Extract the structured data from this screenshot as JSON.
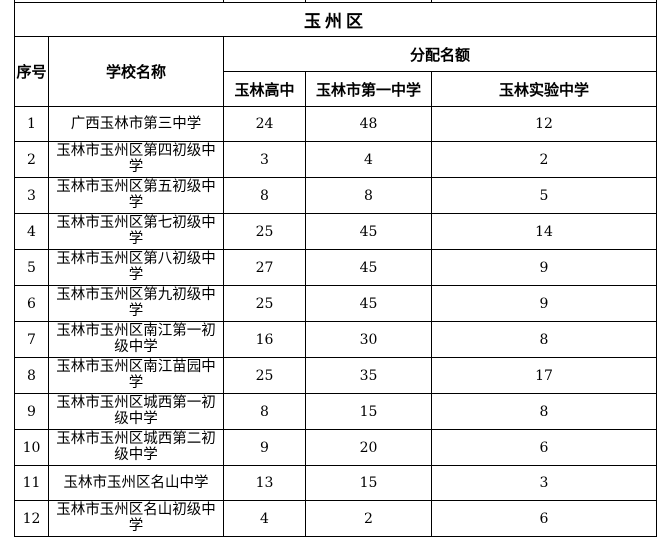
{
  "title": "玉州区",
  "headers": {
    "index": "序号",
    "school": "学校名称",
    "quota": "分配名额",
    "cols": [
      "玉林高中",
      "玉林市第一中学",
      "玉林实验中学"
    ]
  },
  "rows": [
    {
      "no": "1",
      "name": "广西玉林市第三中学",
      "v": [
        "24",
        "48",
        "12"
      ]
    },
    {
      "no": "2",
      "name": "玉林市玉州区第四初级中学",
      "v": [
        "3",
        "4",
        "2"
      ]
    },
    {
      "no": "3",
      "name": "玉林市玉州区第五初级中学",
      "v": [
        "8",
        "8",
        "5"
      ]
    },
    {
      "no": "4",
      "name": "玉林市玉州区第七初级中学",
      "v": [
        "25",
        "45",
        "14"
      ]
    },
    {
      "no": "5",
      "name": "玉林市玉州区第八初级中学",
      "v": [
        "27",
        "45",
        "9"
      ]
    },
    {
      "no": "6",
      "name": "玉林市玉州区第九初级中学",
      "v": [
        "25",
        "45",
        "9"
      ]
    },
    {
      "no": "7",
      "name": "玉林市玉州区南江第一初级中学",
      "v": [
        "16",
        "30",
        "8"
      ]
    },
    {
      "no": "8",
      "name": "玉林市玉州区南江苗园中学",
      "v": [
        "25",
        "35",
        "17"
      ]
    },
    {
      "no": "9",
      "name": "玉林市玉州区城西第一初级中学",
      "v": [
        "8",
        "15",
        "8"
      ]
    },
    {
      "no": "10",
      "name": "玉林市玉州区城西第二初级中学",
      "v": [
        "9",
        "20",
        "6"
      ]
    },
    {
      "no": "11",
      "name": "玉林市玉州区名山中学",
      "v": [
        "13",
        "15",
        "3"
      ]
    },
    {
      "no": "12",
      "name": "玉林市玉州区名山初级中学",
      "v": [
        "4",
        "2",
        "6"
      ]
    }
  ]
}
